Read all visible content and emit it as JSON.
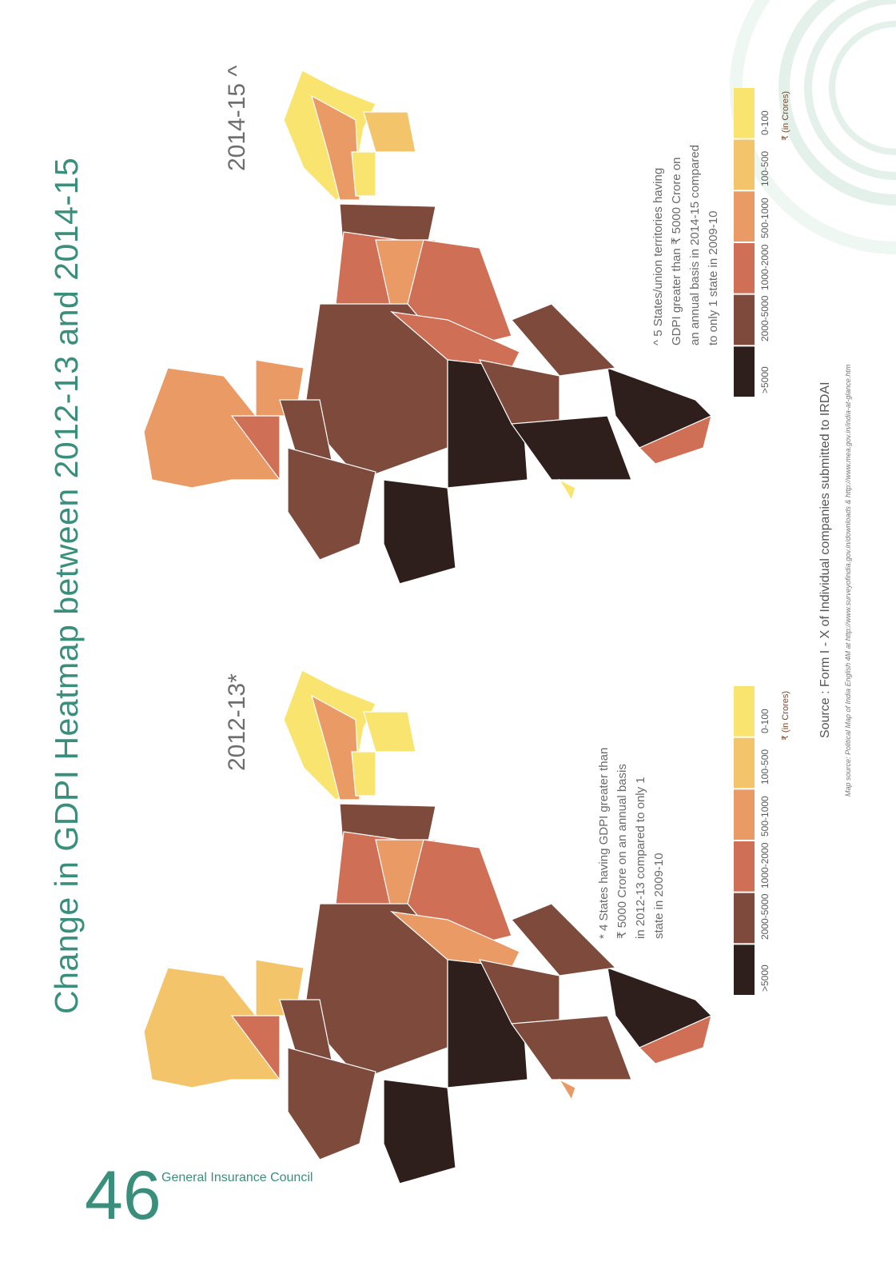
{
  "page": {
    "title": "Change in GDPI Heatmap between 2012-13 and 2014-15",
    "number": "46",
    "org": "General Insurance Council"
  },
  "maps": [
    {
      "year_label": "2014-15 ^",
      "note": "^ 5 States/union territories having\nGDPI greater than ₹ 5000 Crore on\nan annual basis in 2014-15 compared\nto only 1 state in 2009-10"
    },
    {
      "year_label": "2012-13*",
      "note": "* 4 States having GDPI greater than\n₹ 5000 Crore on an annual basis\nin 2012-13 compared to only 1\nstate in 2009-10"
    }
  ],
  "legend": {
    "unit": "₹ (in Crores)",
    "classes": [
      {
        "label": "0-100",
        "color": "#f9e46f"
      },
      {
        "label": "100-500",
        "color": "#f4c46a"
      },
      {
        "label": "500-1000",
        "color": "#ea9a64"
      },
      {
        "label": "1000-2000",
        "color": "#cf6f55"
      },
      {
        "label": "2000-5000",
        "color": "#7e4a3c"
      },
      {
        "label": ">5000",
        "color": "#2e1f1c"
      }
    ]
  },
  "source": {
    "main": "Source : Form I - X of Individual companies submitted to IRDAI",
    "map": "Map source: Political Map of India English 4M at http://www.surveyofindia.gov.in/downloads & http://www.mea.gov.in/india-at-glance.htm"
  },
  "colors": {
    "accent": "#3a8f7c",
    "deco_arc": "#e4f1eb"
  }
}
